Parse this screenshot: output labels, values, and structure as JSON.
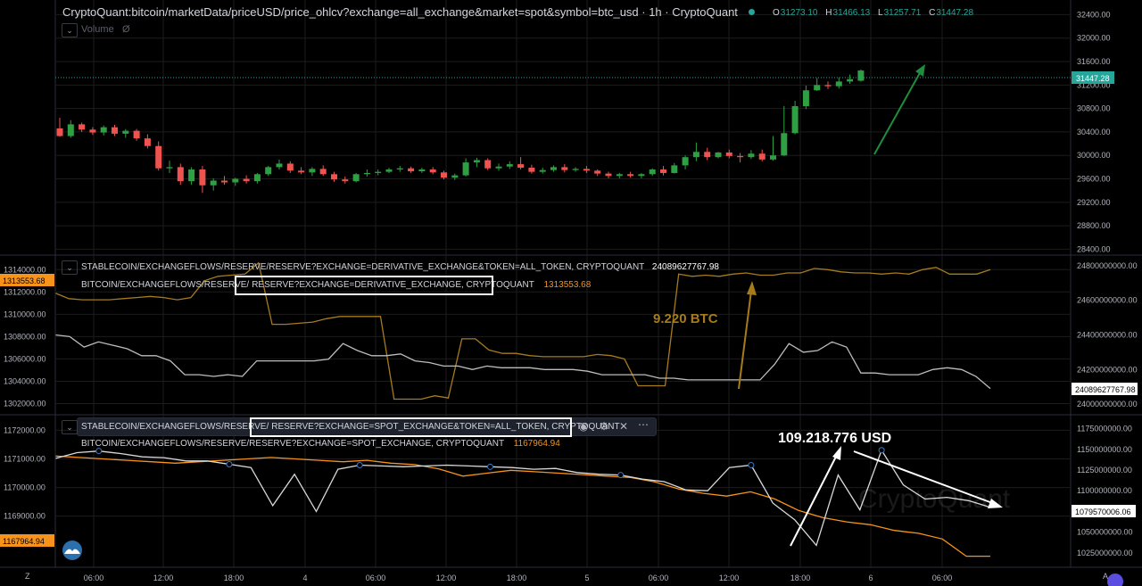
{
  "colors": {
    "background": "#000000",
    "grid": "#1c1c1c",
    "up": "#26a69a",
    "up_candle": "#2ea043",
    "down": "#ef5350",
    "orange": "#f7931a",
    "white_series": "#d9d9d9",
    "annotation_brown": "#a67c1b"
  },
  "top_pane": {
    "title": "CryptoQuant:bitcoin/marketData/priceUSD/price_ohlcv?exchange=all_exchange&market=spot&symbol=btc_usd · 1h · CryptoQuant",
    "ohlc": {
      "o_label": "O",
      "o": "31273.10",
      "h_label": "H",
      "h": "31466.13",
      "l_label": "L",
      "l": "31257.71",
      "c_label": "C",
      "c": "31447.28"
    },
    "volume_label": "Volume",
    "price_tag": "31447.28"
  },
  "mid_pane": {
    "legend1": "STABLECOIN/EXCHANGEFLOWS/RESERVE/RESERVE?EXCHANGE=DERIVATIVE_EXCHANGE&TOKEN=ALL_TOKEN, CRYPTOQUANT",
    "legend1_value": "24089627767.98",
    "legend2_prefix": "BITCOIN/EXCHANGEFLOWS/RESERVE/",
    "legend2_boxed": "RESERVE?EXCHANGE=DERIVATIVE_EXCHANGE, CRYPTOQUANT",
    "legend2_value": "1313553.68",
    "left_tag": "1313553.68",
    "right_tag": "24089627767.98",
    "annotation": "9.220 BTC"
  },
  "bottom_pane": {
    "legend1_prefix": "STABLECOIN/EXCHANGEFLOWS/RESERVE/",
    "legend1_boxed": "RESERVE?EXCHANGE=SPOT_EXCHANGE&TOKEN=ALL_TOKEN, CRYPTOQUANT",
    "legend2": "BITCOIN/EXCHANGEFLOWS/RESERVE/RESERVE?EXCHANGE=SPOT_EXCHANGE, CRYPTOQUANT",
    "legend2_value": "1167964.94",
    "left_tag": "1167964.94",
    "right_tag": "1079570006.06",
    "annotation": "109.218.776 USD",
    "watermark": "CryptoQuant"
  },
  "footer": {
    "z_label": "Z",
    "a_label": "A"
  },
  "chart_data": [
    {
      "type": "candlestick",
      "title": "CryptoQuant:bitcoin/marketData/priceUSD/price_ohlcv?exchange=all_exchange&market=spot&symbol=btc_usd · 1h · CryptoQuant",
      "x_tick_labels": [
        "06:00",
        "12:00",
        "18:00",
        "4",
        "06:00",
        "12:00",
        "18:00",
        "5",
        "06:00",
        "12:00",
        "18:00",
        "6",
        "06:00"
      ],
      "y_tick_labels": [
        "32400.00",
        "32000.00",
        "31600.00",
        "31200.00",
        "30800.00",
        "30400.00",
        "30000.00",
        "29600.00",
        "29200.00",
        "28800.00",
        "28400.00"
      ],
      "ylim": [
        28300,
        32650
      ],
      "candles": [
        [
          30460,
          30640,
          30330,
          30320
        ],
        [
          30330,
          30600,
          30530,
          30300
        ],
        [
          30530,
          30560,
          30440,
          30400
        ],
        [
          30440,
          30480,
          30390,
          30350
        ],
        [
          30390,
          30510,
          30480,
          30340
        ],
        [
          30480,
          30520,
          30370,
          30330
        ],
        [
          30370,
          30450,
          30420,
          30300
        ],
        [
          30420,
          30450,
          30290,
          30250
        ],
        [
          30290,
          30360,
          30160,
          30120
        ],
        [
          30160,
          30240,
          29780,
          29740
        ],
        [
          29780,
          29910,
          29800,
          29700
        ],
        [
          29800,
          29860,
          29560,
          29500
        ],
        [
          29560,
          29800,
          29760,
          29500
        ],
        [
          29760,
          29820,
          29490,
          29360
        ],
        [
          29490,
          29610,
          29570,
          29400
        ],
        [
          29570,
          29650,
          29540,
          29500
        ],
        [
          29540,
          29620,
          29600,
          29480
        ],
        [
          29600,
          29660,
          29560,
          29520
        ],
        [
          29560,
          29700,
          29680,
          29520
        ],
        [
          29680,
          29820,
          29800,
          29650
        ],
        [
          29800,
          29930,
          29860,
          29760
        ],
        [
          29860,
          29900,
          29740,
          29700
        ],
        [
          29740,
          29800,
          29710,
          29680
        ],
        [
          29710,
          29800,
          29770,
          29650
        ],
        [
          29770,
          29830,
          29680,
          29650
        ],
        [
          29680,
          29720,
          29590,
          29550
        ],
        [
          29590,
          29640,
          29560,
          29520
        ],
        [
          29560,
          29700,
          29680,
          29540
        ],
        [
          29680,
          29760,
          29700,
          29640
        ],
        [
          29700,
          29760,
          29720,
          29660
        ],
        [
          29720,
          29790,
          29760,
          29700
        ],
        [
          29760,
          29820,
          29780,
          29720
        ],
        [
          29780,
          29810,
          29730,
          29700
        ],
        [
          29730,
          29790,
          29760,
          29700
        ],
        [
          29760,
          29800,
          29710,
          29680
        ],
        [
          29710,
          29740,
          29620,
          29590
        ],
        [
          29620,
          29690,
          29660,
          29580
        ],
        [
          29660,
          29950,
          29880,
          29640
        ],
        [
          29880,
          29960,
          29920,
          29800
        ],
        [
          29920,
          29950,
          29780,
          29750
        ],
        [
          29780,
          29860,
          29810,
          29740
        ],
        [
          29810,
          29900,
          29850,
          29770
        ],
        [
          29850,
          29970,
          29790,
          29760
        ],
        [
          29790,
          29840,
          29720,
          29690
        ],
        [
          29720,
          29790,
          29750,
          29690
        ],
        [
          29750,
          29830,
          29800,
          29720
        ],
        [
          29800,
          29850,
          29750,
          29710
        ],
        [
          29750,
          29800,
          29770,
          29720
        ],
        [
          29770,
          29820,
          29740,
          29700
        ],
        [
          29740,
          29760,
          29690,
          29650
        ],
        [
          29690,
          29720,
          29650,
          29610
        ],
        [
          29650,
          29700,
          29680,
          29610
        ],
        [
          29680,
          29720,
          29650,
          29620
        ],
        [
          29650,
          29700,
          29680,
          29610
        ],
        [
          29680,
          29780,
          29760,
          29650
        ],
        [
          29760,
          29820,
          29700,
          29660
        ],
        [
          29700,
          29870,
          29830,
          29690
        ],
        [
          29830,
          30000,
          29970,
          29760
        ],
        [
          29970,
          30220,
          30060,
          29900
        ],
        [
          30060,
          30130,
          29970,
          29920
        ],
        [
          29970,
          30060,
          30050,
          29950
        ],
        [
          30050,
          30100,
          29990,
          29950
        ],
        [
          29990,
          30040,
          29970,
          29880
        ],
        [
          29970,
          30090,
          30030,
          29940
        ],
        [
          30030,
          30100,
          29930,
          29900
        ],
        [
          29930,
          30330,
          30000,
          29910
        ],
        [
          30000,
          30840,
          30380,
          29990
        ],
        [
          30380,
          30930,
          30840,
          30360
        ],
        [
          30840,
          31190,
          31110,
          30790
        ],
        [
          31110,
          31320,
          31200,
          31100
        ],
        [
          31200,
          31260,
          31180,
          31130
        ],
        [
          31180,
          31330,
          31260,
          31140
        ],
        [
          31260,
          31380,
          31300,
          31220
        ],
        [
          31273.1,
          31466.13,
          31447.28,
          31257.71
        ]
      ]
    },
    {
      "type": "line",
      "legend": [
        "STABLECOIN/EXCHANGEFLOWS/RESERVE/RESERVE?EXCHANGE=DERIVATIVE_EXCHANGE&TOKEN=ALL_TOKEN, CRYPTOQUANT",
        "BITCOIN/EXCHANGEFLOWS/RESERVE/RESERVE?EXCHANGE=DERIVATIVE_EXCHANGE, CRYPTOQUANT"
      ],
      "left_y_tick_labels": [
        "1314000.00",
        "1312000.00",
        "1310000.00",
        "1308000.00",
        "1306000.00",
        "1304000.00",
        "1302000.00"
      ],
      "right_y_tick_labels": [
        "24800000000.00",
        "24600000000.00",
        "24400000000.00",
        "24200000000.00",
        "24000000000.00"
      ],
      "left_ylim": [
        1301800,
        1314500
      ],
      "right_ylim": [
        23990000000,
        24810000000
      ],
      "series": [
        {
          "name": "BITCOIN/EXCHANGEFLOWS/RESERVE/RESERVE?EXCHANGE=DERIVATIVE_EXCHANGE, CRYPTOQUANT",
          "axis": "left",
          "values": [
            1311900,
            1311400,
            1311300,
            1311300,
            1311300,
            1311400,
            1311500,
            1311600,
            1311500,
            1311300,
            1311500,
            1313000,
            1313400,
            1313500,
            1313600,
            1314600,
            1309100,
            1309100,
            1309200,
            1309300,
            1309600,
            1309800,
            1309800,
            1309800,
            1309800,
            1302400,
            1302400,
            1302400,
            1302700,
            1302500,
            1307800,
            1307800,
            1306800,
            1306500,
            1306500,
            1306300,
            1306200,
            1306200,
            1306200,
            1306200,
            1306400,
            1306300,
            1306000,
            1303600,
            1303600,
            1303600,
            1313600,
            1313400,
            1313500,
            1313400,
            1313600,
            1313700,
            1313500,
            1313500,
            1313700,
            1313700,
            1314100,
            1314000,
            1313800,
            1313700,
            1313700,
            1313600,
            1313700,
            1313600,
            1314000,
            1314200,
            1313600,
            1313600,
            1313600,
            1314000
          ]
        },
        {
          "name": "STABLECOIN/EXCHANGEFLOWS/RESERVE/RESERVE?EXCHANGE=DERIVATIVE_EXCHANGE&TOKEN=ALL_TOKEN, CRYPTOQUANT",
          "axis": "right",
          "values": [
            24400000000,
            24390000000,
            24330000000,
            24360000000,
            24340000000,
            24320000000,
            24280000000,
            24280000000,
            24250000000,
            24170000000,
            24170000000,
            24160000000,
            24170000000,
            24160000000,
            24250000000,
            24250000000,
            24250000000,
            24250000000,
            24250000000,
            24260000000,
            24350000000,
            24310000000,
            24280000000,
            24280000000,
            24290000000,
            24250000000,
            24240000000,
            24220000000,
            24220000000,
            24200000000,
            24220000000,
            24210000000,
            24210000000,
            24210000000,
            24200000000,
            24200000000,
            24200000000,
            24190000000,
            24170000000,
            24170000000,
            24170000000,
            24170000000,
            24150000000,
            24150000000,
            24140000000,
            24140000000,
            24140000000,
            24140000000,
            24140000000,
            24140000000,
            24230000000,
            24350000000,
            24300000000,
            24310000000,
            24360000000,
            24330000000,
            24180000000,
            24180000000,
            24170000000,
            24170000000,
            24170000000,
            24200000000,
            24210000000,
            24200000000,
            24160000000,
            24090000000
          ]
        }
      ]
    },
    {
      "type": "line",
      "legend": [
        "STABLECOIN/EXCHANGEFLOWS/RESERVE/RESERVE?EXCHANGE=SPOT_EXCHANGE&TOKEN=ALL_TOKEN, CRYPTOQUANT",
        "BITCOIN/EXCHANGEFLOWS/RESERVE/RESERVE?EXCHANGE=SPOT_EXCHANGE, CRYPTOQUANT"
      ],
      "left_y_tick_labels": [
        "1172000.00",
        "1171000.00",
        "1170000.00",
        "1169000.00"
      ],
      "right_y_tick_labels": [
        "1175000000.00",
        "1150000000.00",
        "1125000000.00",
        "1100000000.00",
        "1075000000.00",
        "1050000000.00",
        "1025000000.00"
      ],
      "left_ylim": [
        1167400,
        1172200
      ],
      "right_ylim": [
        1014000000,
        1180000000
      ],
      "series": [
        {
          "name": "BITCOIN/EXCHANGEFLOWS/RESERVE/RESERVE?EXCHANGE=SPOT_EXCHANGE, CRYPTOQUANT",
          "axis": "left",
          "values": [
            1171100,
            1171050,
            1171000,
            1170950,
            1170900,
            1170850,
            1170900,
            1170950,
            1171000,
            1171050,
            1171000,
            1170950,
            1170900,
            1170950,
            1170850,
            1170800,
            1170650,
            1170400,
            1170500,
            1170600,
            1170550,
            1170500,
            1170450,
            1170400,
            1170350,
            1170200,
            1169950,
            1169800,
            1169700,
            1169850,
            1169600,
            1169200,
            1168950,
            1168800,
            1168700,
            1168500,
            1168400,
            1168200,
            1167600,
            1167600
          ]
        },
        {
          "name": "STABLECOIN/EXCHANGEFLOWS/RESERVE/RESERVE?EXCHANGE=SPOT_EXCHANGE&TOKEN=ALL_TOKEN, CRYPTOQUANT",
          "axis": "right",
          "values": [
            1139000000,
            1146000000,
            1148000000,
            1145000000,
            1141000000,
            1140000000,
            1136000000,
            1136000000,
            1132000000,
            1128000000,
            1082000000,
            1120000000,
            1075000000,
            1126000000,
            1131000000,
            1130000000,
            1129000000,
            1130000000,
            1131000000,
            1130000000,
            1129000000,
            1128000000,
            1126000000,
            1127000000,
            1122000000,
            1120000000,
            1119000000,
            1114000000,
            1111000000,
            1101000000,
            1100000000,
            1128000000,
            1131000000,
            1085000000,
            1065000000,
            1034000000,
            1119000000,
            1077000000,
            1149000000,
            1107000000,
            1090000000,
            1092000000,
            1088000000,
            1080000000
          ]
        }
      ]
    }
  ]
}
